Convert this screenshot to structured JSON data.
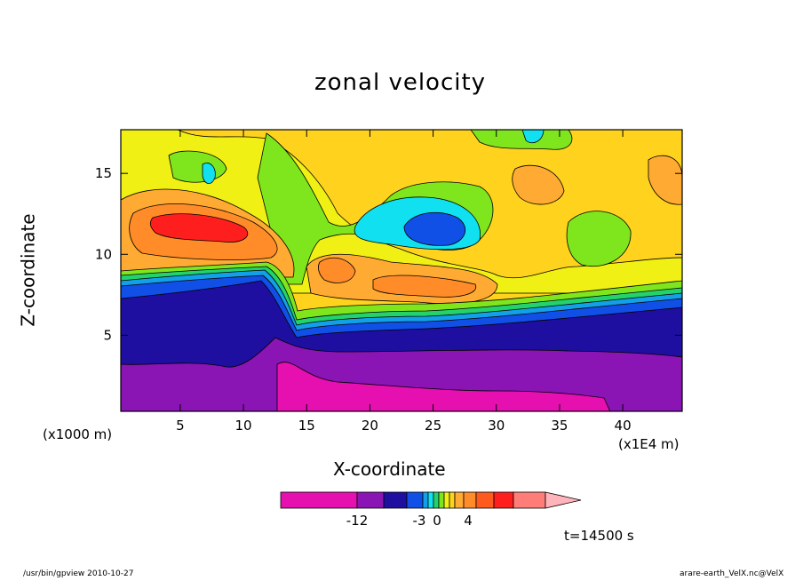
{
  "chart_data": {
    "type": "heatmap",
    "title": "zonal velocity",
    "xlabel": "X-coordinate",
    "ylabel": "Z-coordinate",
    "x_units_left": "(x1000 m)",
    "x_units_right": "(x1E4 m)",
    "xlim": [
      0.3,
      44.7
    ],
    "ylim": [
      0.3,
      17.7
    ],
    "x_ticks": [
      5,
      10,
      15,
      20,
      25,
      30,
      35,
      40
    ],
    "y_ticks": [
      5,
      10,
      15
    ],
    "colorbar": {
      "colors": [
        "#e60fb0",
        "#8a14b4",
        "#1e0fa0",
        "#1050e6",
        "#12a0e6",
        "#10e0f0",
        "#23d26a",
        "#7fe61e",
        "#f0f014",
        "#ffd21e",
        "#ffaa32",
        "#ff8c28",
        "#ff5a1e",
        "#ff1e1e",
        "#ff7d78",
        "#ffb4bb"
      ],
      "tick_labels": [
        "-12",
        "-3",
        "0",
        "4"
      ],
      "extend": "max"
    },
    "time_label": "t=14500 s",
    "field_description": "contour-filled zonal velocity field in x-z plane; strong easterly (negative) flow below z~9 km, westerly maxima near z~11-12 km on the left and z~8 km around x~17-28, negative cell near x~24, z~11"
  },
  "footer": {
    "left": "/usr/bin/gpview   2010-10-27",
    "right": "arare-earth_VelX.nc@VelX"
  }
}
